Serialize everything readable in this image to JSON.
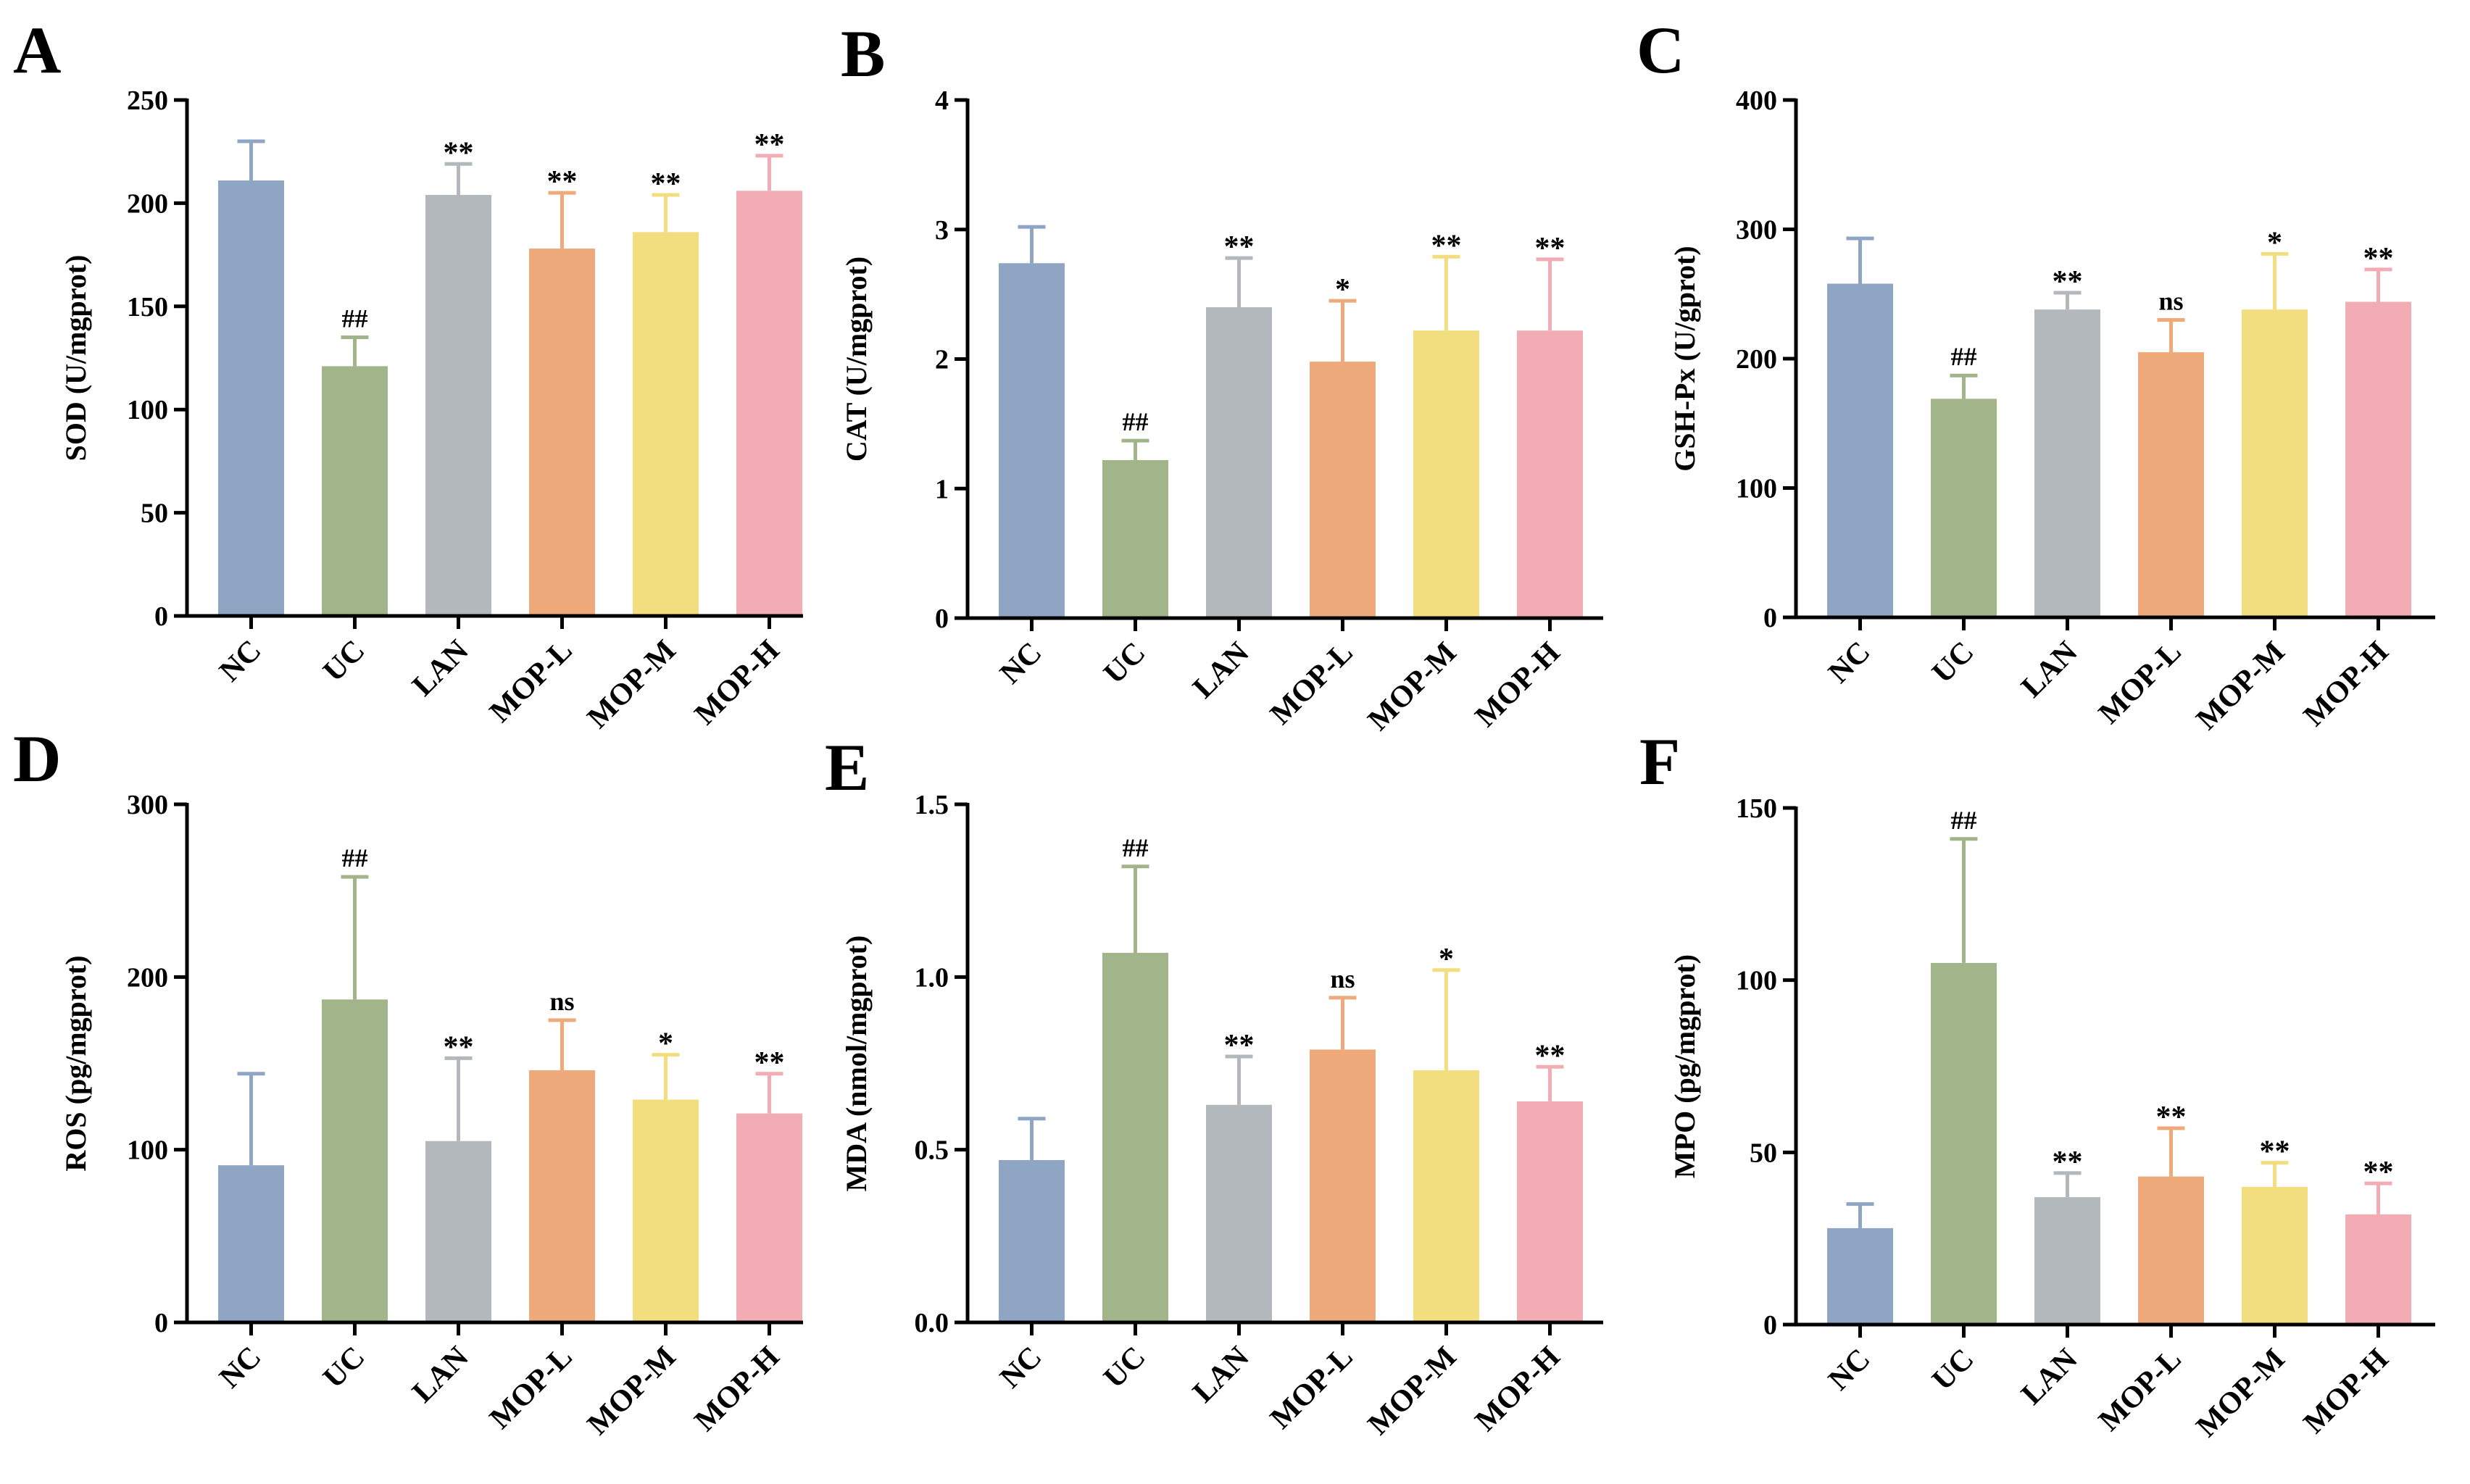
{
  "group_colors": {
    "NC": "#8ea5c4",
    "UC": "#a2b48a",
    "LAN": "#b3b8bc",
    "MOP-L": "#eeaa7a",
    "MOP-M": "#f2de7f",
    "MOP-H": "#f2adb4"
  },
  "chart_data": [
    {
      "panel": "A",
      "type": "bar",
      "ylabel": "SOD (U/mgprot)",
      "ylim": [
        0,
        250
      ],
      "yticks": [
        0,
        50,
        100,
        150,
        200,
        250
      ],
      "categories": [
        "NC",
        "UC",
        "LAN",
        "MOP-L",
        "MOP-M",
        "MOP-H"
      ],
      "values": [
        211,
        121,
        204,
        178,
        186,
        206
      ],
      "errors": [
        19,
        14,
        15,
        27,
        18,
        17
      ],
      "significance": [
        "",
        "##",
        "**",
        "**",
        "**",
        "**"
      ]
    },
    {
      "panel": "B",
      "type": "bar",
      "ylabel": "CAT (U/mgprot)",
      "ylim": [
        0,
        4
      ],
      "yticks": [
        0,
        1,
        2,
        3,
        4
      ],
      "categories": [
        "NC",
        "UC",
        "LAN",
        "MOP-L",
        "MOP-M",
        "MOP-H"
      ],
      "values": [
        2.74,
        1.22,
        2.4,
        1.98,
        2.22,
        2.22
      ],
      "errors": [
        0.28,
        0.15,
        0.38,
        0.47,
        0.57,
        0.55
      ],
      "significance": [
        "",
        "##",
        "**",
        "*",
        "**",
        "**"
      ]
    },
    {
      "panel": "C",
      "type": "bar",
      "ylabel": "GSH-Px (U/gprot)",
      "ylim": [
        0,
        400
      ],
      "yticks": [
        0,
        100,
        200,
        300,
        400
      ],
      "categories": [
        "NC",
        "UC",
        "LAN",
        "MOP-L",
        "MOP-M",
        "MOP-H"
      ],
      "values": [
        258,
        169,
        238,
        205,
        238,
        244
      ],
      "errors": [
        35,
        18,
        13,
        25,
        43,
        25
      ],
      "significance": [
        "",
        "##",
        "**",
        "ns",
        "*",
        "**"
      ]
    },
    {
      "panel": "D",
      "type": "bar",
      "ylabel": "ROS (pg/mgprot)",
      "ylim": [
        0,
        300
      ],
      "yticks": [
        0,
        100,
        200,
        300
      ],
      "categories": [
        "NC",
        "UC",
        "LAN",
        "MOP-L",
        "MOP-M",
        "MOP-H"
      ],
      "values": [
        91,
        187,
        105,
        146,
        129,
        121
      ],
      "errors": [
        53,
        71,
        48,
        29,
        26,
        23
      ],
      "significance": [
        "",
        "##",
        "**",
        "ns",
        "*",
        "**"
      ]
    },
    {
      "panel": "E",
      "type": "bar",
      "ylabel": "MDA (nmol/mgprot)",
      "ylim": [
        0,
        1.5
      ],
      "yticks": [
        "0.0",
        "0.5",
        "1.0",
        "1.5"
      ],
      "categories": [
        "NC",
        "UC",
        "LAN",
        "MOP-L",
        "MOP-M",
        "MOP-H"
      ],
      "values": [
        0.47,
        1.07,
        0.63,
        0.79,
        0.73,
        0.64
      ],
      "errors": [
        0.12,
        0.25,
        0.14,
        0.15,
        0.29,
        0.1
      ],
      "significance": [
        "",
        "##",
        "**",
        "ns",
        "*",
        "**"
      ]
    },
    {
      "panel": "F",
      "type": "bar",
      "ylabel": "MPO (pg/mgprot)",
      "ylim": [
        0,
        150
      ],
      "yticks": [
        0,
        50,
        100,
        150
      ],
      "categories": [
        "NC",
        "UC",
        "LAN",
        "MOP-L",
        "MOP-M",
        "MOP-H"
      ],
      "values": [
        28,
        105,
        37,
        43,
        40,
        32
      ],
      "errors": [
        7,
        36,
        7,
        14,
        7,
        9
      ],
      "significance": [
        "",
        "##",
        "**",
        "**",
        "**",
        "**"
      ]
    }
  ]
}
